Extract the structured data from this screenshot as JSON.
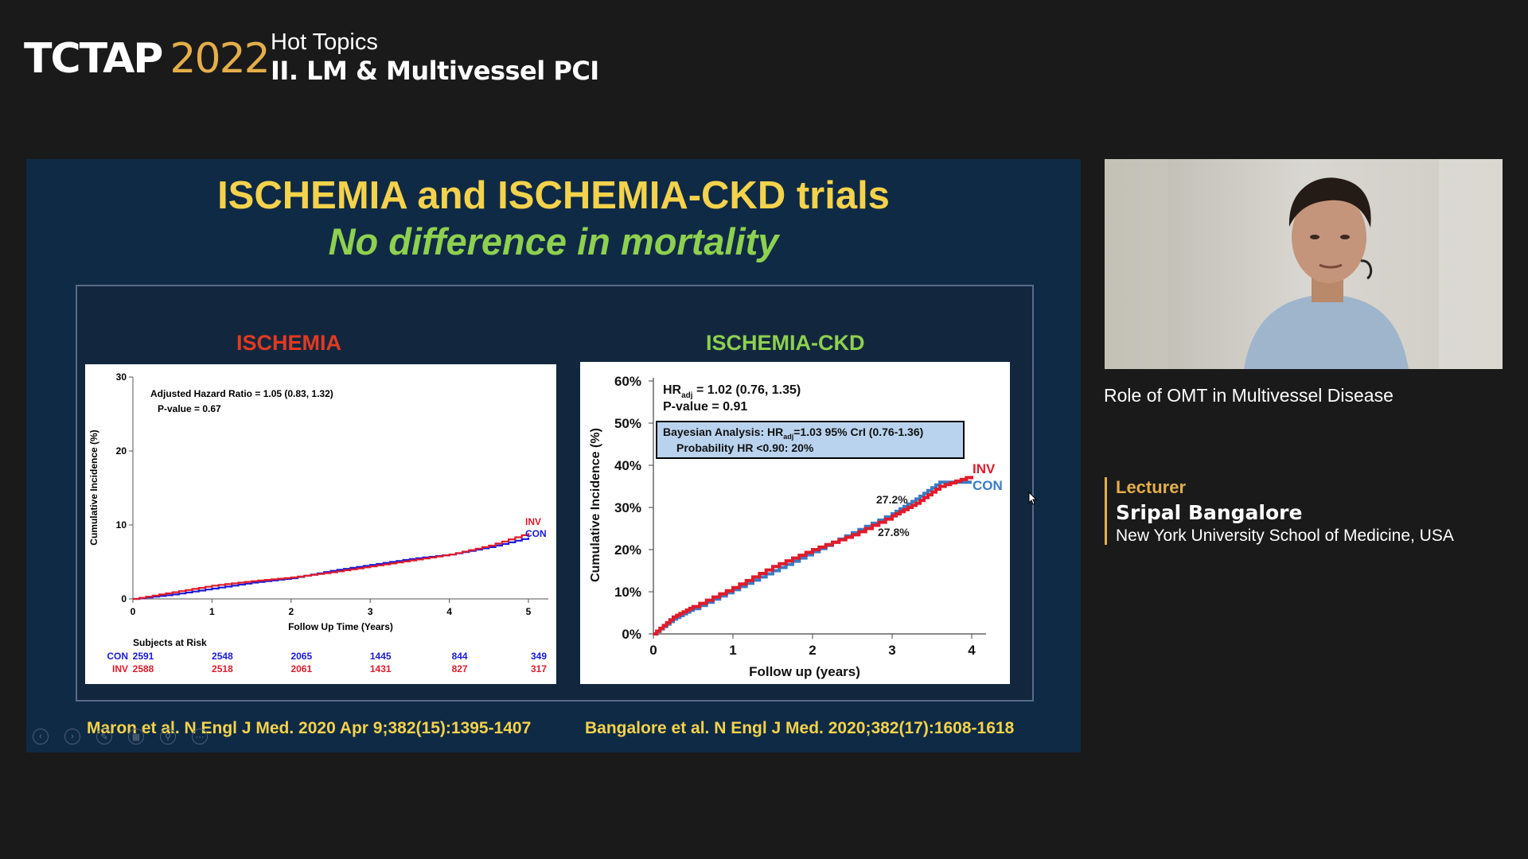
{
  "header": {
    "brand": "TCTAP",
    "year": "2022",
    "kicker": "Hot Topics",
    "session_title": "II. LM & Multivessel PCI"
  },
  "slide": {
    "title": "ISCHEMIA and ISCHEMIA-CKD trials",
    "subtitle": "No difference in mortality",
    "left_panel_title": "ISCHEMIA",
    "right_panel_title": "ISCHEMIA-CKD",
    "citation_left": "Maron et al. N Engl J Med. 2020 Apr 9;382(15):1395-1407",
    "citation_right": "Bangalore et al. N Engl J Med. 2020;382(17):1608-1618",
    "left_annotations": {
      "hr": "Adjusted Hazard Ratio = 1.05 (0.83, 1.32)",
      "p": "P-value = 0.67",
      "risk_title": "Subjects at Risk"
    },
    "right_annotations": {
      "hr_prefix": "HR",
      "hr_sub": "adj",
      "hr_value": " = 1.02 (0.76, 1.35)",
      "p": "P-value = 0.91",
      "bayes_prefix": "Bayesian Analysis: HR",
      "bayes_sub": "adj",
      "bayes_value": "=1.03 95% CrI (0.76-1.36)",
      "bayes_line2": "Probability HR <0.90: 20%",
      "label_inv_pct": "27.2%",
      "label_con_pct": "27.8%"
    },
    "colors": {
      "inv": "#e01b2b",
      "con_left": "#1a1adb",
      "con_right": "#3a7cc4",
      "title": "#f4d24b",
      "subtitle": "#8ed04f",
      "slide_bg": "#0f2a45"
    }
  },
  "chart_data": [
    {
      "type": "line",
      "title": "ISCHEMIA",
      "xlabel": "Follow Up Time (Years)",
      "ylabel": "Cumulative Incidence (%)",
      "xlim": [
        0,
        5
      ],
      "ylim": [
        0,
        30
      ],
      "x_ticks": [
        "0",
        "1",
        "2",
        "3",
        "4",
        "5"
      ],
      "y_ticks": [
        "0",
        "10",
        "20",
        "30"
      ],
      "legend": "right-end",
      "series": [
        {
          "name": "INV",
          "color": "#e01b2b",
          "x": [
            0,
            0.5,
            1,
            1.5,
            2,
            2.5,
            3,
            3.5,
            4,
            4.5,
            5
          ],
          "y": [
            0,
            0.9,
            1.8,
            2.4,
            2.9,
            3.6,
            4.4,
            5.2,
            6.0,
            7.2,
            8.9
          ]
        },
        {
          "name": "CON",
          "color": "#1a1adb",
          "x": [
            0,
            0.5,
            1,
            1.5,
            2,
            2.5,
            3,
            3.5,
            4,
            4.5,
            5
          ],
          "y": [
            0,
            0.6,
            1.4,
            2.2,
            2.8,
            3.8,
            4.6,
            5.4,
            6.0,
            7.0,
            8.3
          ]
        }
      ],
      "risk_table": {
        "title": "Subjects at Risk",
        "rows": [
          {
            "name": "CON",
            "values": [
              "2591",
              "2548",
              "2065",
              "1445",
              "844",
              "349"
            ]
          },
          {
            "name": "INV",
            "values": [
              "2588",
              "2518",
              "2061",
              "1431",
              "827",
              "317"
            ]
          }
        ]
      }
    },
    {
      "type": "line",
      "title": "ISCHEMIA-CKD",
      "xlabel": "Follow up (years)",
      "ylabel": "Cumulative Incidence (%)",
      "xlim": [
        0,
        4
      ],
      "ylim": [
        0,
        60
      ],
      "x_ticks": [
        "0",
        "1",
        "2",
        "3",
        "4"
      ],
      "y_ticks": [
        "0%",
        "10%",
        "20%",
        "30%",
        "40%",
        "50%",
        "60%"
      ],
      "legend": "right-end",
      "series": [
        {
          "name": "INV",
          "color": "#e01b2b",
          "x": [
            0,
            0.25,
            0.5,
            1,
            1.5,
            2,
            2.5,
            3,
            3.3,
            3.6,
            4
          ],
          "y": [
            0,
            4,
            6.5,
            11,
            16,
            20,
            23.5,
            28,
            31,
            35,
            37.5
          ]
        },
        {
          "name": "CON",
          "color": "#3a7cc4",
          "x": [
            0,
            0.25,
            0.5,
            1,
            1.5,
            2,
            2.5,
            3,
            3.3,
            3.6,
            4
          ],
          "y": [
            0,
            3.5,
            6,
            10.5,
            15,
            19.5,
            24,
            28.5,
            32,
            36,
            36
          ]
        }
      ]
    }
  ],
  "speaker": {
    "video_caption": "Role of OMT in Multivessel Disease",
    "label": "Lecturer",
    "name": "Sripal Bangalore",
    "institution": "New York University School of Medicine, USA"
  }
}
